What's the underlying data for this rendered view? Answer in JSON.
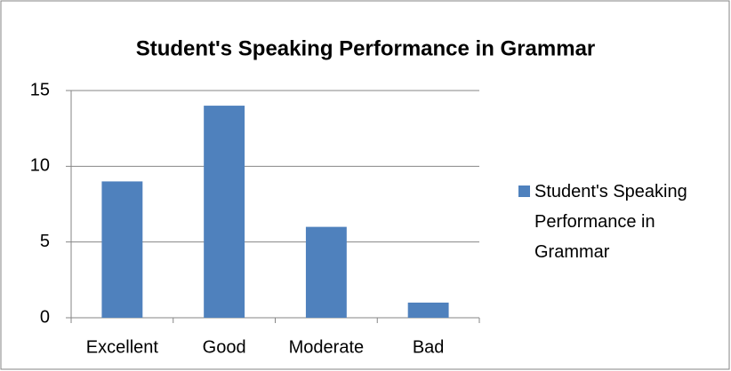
{
  "chart_data": {
    "type": "bar",
    "title": "Student's Speaking Performance in Grammar",
    "categories": [
      "Excellent",
      "Good",
      "Moderate",
      "Bad"
    ],
    "series": [
      {
        "name": "Student's Speaking Performance in Grammar",
        "color": "#4f81bd",
        "values": [
          9,
          14,
          6,
          1
        ]
      }
    ],
    "ylim": [
      0,
      15
    ],
    "yticks": [
      0,
      5,
      10,
      15
    ],
    "grid": true,
    "legend": "right"
  }
}
